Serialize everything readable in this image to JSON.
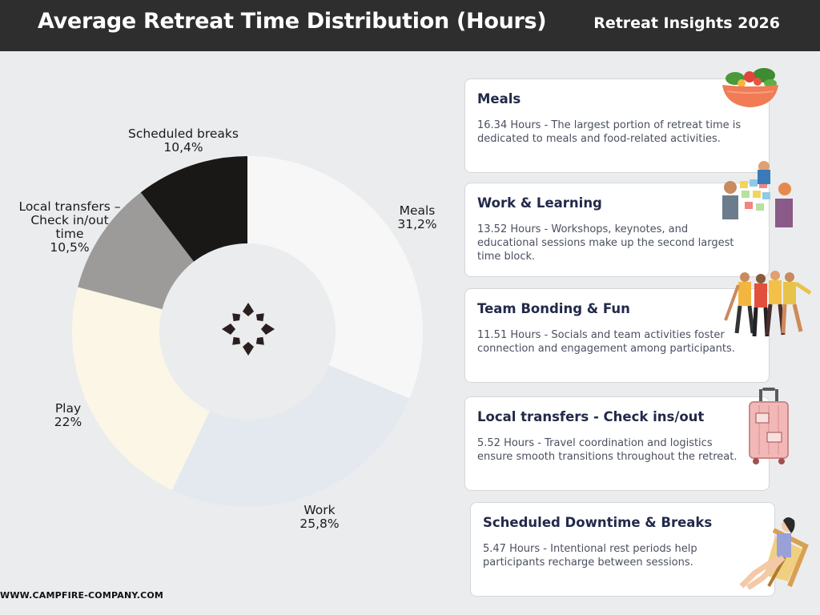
{
  "header": {
    "title": "Average Retreat Time Distribution (Hours)",
    "subtitle": "Retreat Insights 2026"
  },
  "chart_data": {
    "type": "pie",
    "style": "donut",
    "start_angle_deg": 0,
    "direction": "clockwise",
    "slices": [
      {
        "name": "Meals",
        "label": "Meals",
        "pct_label": "31,2%",
        "value": 31.2,
        "color": "#f7f7f7"
      },
      {
        "name": "Work",
        "label": "Work",
        "pct_label": "25,8%",
        "value": 25.8,
        "color": "#e4e9f0"
      },
      {
        "name": "Play",
        "label": "Play",
        "pct_label": "22%",
        "value": 22.0,
        "color": "#fcf6e6"
      },
      {
        "name": "Local transfers – Check in/out time",
        "label": "Local transfers –\nCheck in/out\ntime",
        "pct_label": "10,5%",
        "value": 10.5,
        "color": "#9c9b99"
      },
      {
        "name": "Scheduled breaks",
        "label": "Scheduled breaks",
        "pct_label": "10,4%",
        "value": 10.4,
        "color": "#1a1816"
      }
    ],
    "hole_color": "#ebeced",
    "center_icon": "campfire-logo-icon"
  },
  "cards": [
    {
      "title": "Meals",
      "body": "16.34 Hours - The largest portion of retreat time is dedicated to meals and food-related activities.",
      "icon": "salad-bowl-icon"
    },
    {
      "title": "Work & Learning",
      "body": "13.52 Hours - Workshops, keynotes, and educational sessions make up the second largest time block.",
      "icon": "team-sticky-notes-icon"
    },
    {
      "title": "Team Bonding & Fun",
      "body": "11.51 Hours - Socials and team activities foster connection and engagement among participants.",
      "icon": "group-celebrating-icon"
    },
    {
      "title": "Local transfers - Check ins/out",
      "body": "5.52 Hours - Travel coordination and logistics ensure smooth transitions throughout the retreat.",
      "icon": "suitcase-icon"
    },
    {
      "title": "Scheduled Downtime & Breaks",
      "body": "5.47 Hours - Intentional rest periods help participants recharge between sessions.",
      "icon": "beach-chair-person-icon"
    }
  ],
  "footer": {
    "website": "WWW.CAMPFIRE-COMPANY.COM"
  }
}
